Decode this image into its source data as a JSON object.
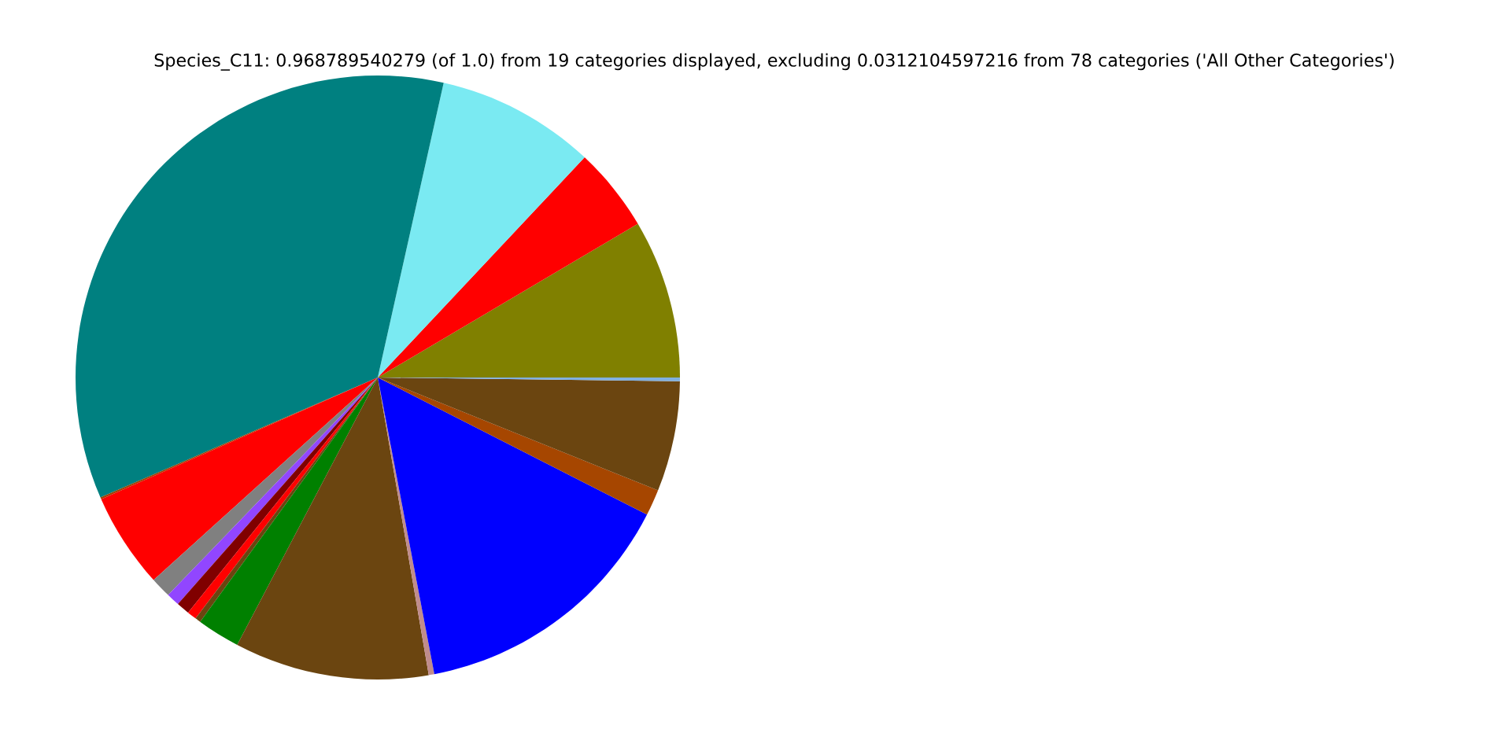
{
  "chart_data": {
    "type": "pie",
    "title": "Species_C11: 0.968789540279 (of 1.0) from 19 categories displayed, excluding 0.0312104597216 from 78 categories ('All Other Categories')",
    "categories": [
      null,
      null,
      null,
      null,
      null,
      null,
      null,
      null,
      null,
      null,
      null,
      null,
      null,
      null,
      null,
      null,
      null,
      null
    ],
    "values": [
      8.5,
      4.5,
      8.5,
      35.0,
      0.1,
      5.1,
      1.1,
      0.7,
      0.7,
      0.5,
      0.3,
      2.3,
      10.4,
      0.3,
      14.5,
      1.4,
      5.9,
      0.2
    ],
    "colors": [
      "#808000",
      "#ff0000",
      "#7aeaf2",
      "#008080",
      "#a04000",
      "#ff0000",
      "#808080",
      "#9146ff",
      "#800000",
      "#ff0000",
      "#6b4510",
      "#008000",
      "#6b4510",
      "#c08c8c",
      "#0000ff",
      "#a64600",
      "#6b4510",
      "#80b0e0"
    ],
    "legend": false
  }
}
